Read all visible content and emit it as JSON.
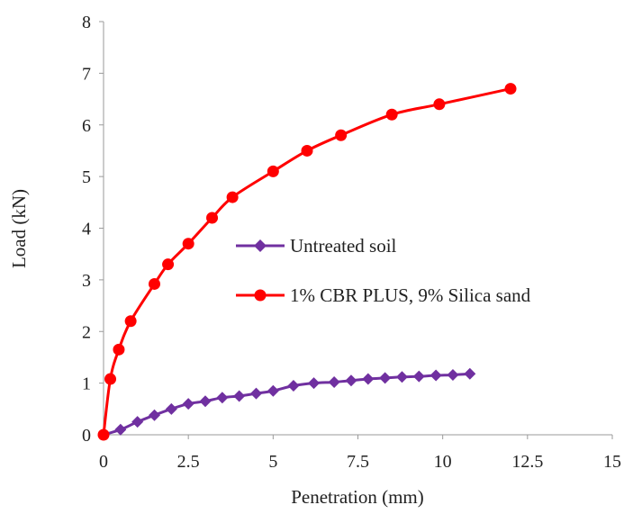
{
  "chart_data": {
    "type": "line",
    "title": "",
    "xlabel": "Penetration (mm)",
    "ylabel": "Load (kN)",
    "xlim": [
      0,
      15
    ],
    "ylim": [
      0,
      8
    ],
    "xticks": [
      "0",
      "2.5",
      "5",
      "7.5",
      "10",
      "12.5",
      "15"
    ],
    "yticks": [
      "0",
      "1",
      "2",
      "3",
      "4",
      "5",
      "6",
      "7",
      "8"
    ],
    "grid": false,
    "legend_position": "center-right",
    "series": [
      {
        "name": "Untreated soil",
        "color": "#7030a0",
        "marker": "diamond",
        "x": [
          0,
          0.5,
          1.0,
          1.5,
          2.0,
          2.5,
          3.0,
          3.5,
          4.0,
          4.5,
          5.0,
          5.6,
          6.2,
          6.8,
          7.3,
          7.8,
          8.3,
          8.8,
          9.3,
          9.8,
          10.3,
          10.8
        ],
        "y": [
          0,
          0.1,
          0.25,
          0.38,
          0.5,
          0.6,
          0.65,
          0.72,
          0.75,
          0.8,
          0.85,
          0.95,
          1.0,
          1.02,
          1.05,
          1.08,
          1.1,
          1.12,
          1.13,
          1.15,
          1.16,
          1.18
        ]
      },
      {
        "name": "1% CBR PLUS, 9% Silica sand",
        "color": "#ff0000",
        "marker": "circle",
        "x": [
          0,
          0.2,
          0.45,
          0.8,
          1.5,
          1.9,
          2.5,
          3.2,
          3.8,
          5.0,
          6.0,
          7.0,
          8.5,
          9.9,
          12.0
        ],
        "y": [
          0,
          1.08,
          1.65,
          2.2,
          2.92,
          3.3,
          3.7,
          4.2,
          4.6,
          5.1,
          5.5,
          5.8,
          6.2,
          6.4,
          6.7
        ]
      }
    ]
  }
}
